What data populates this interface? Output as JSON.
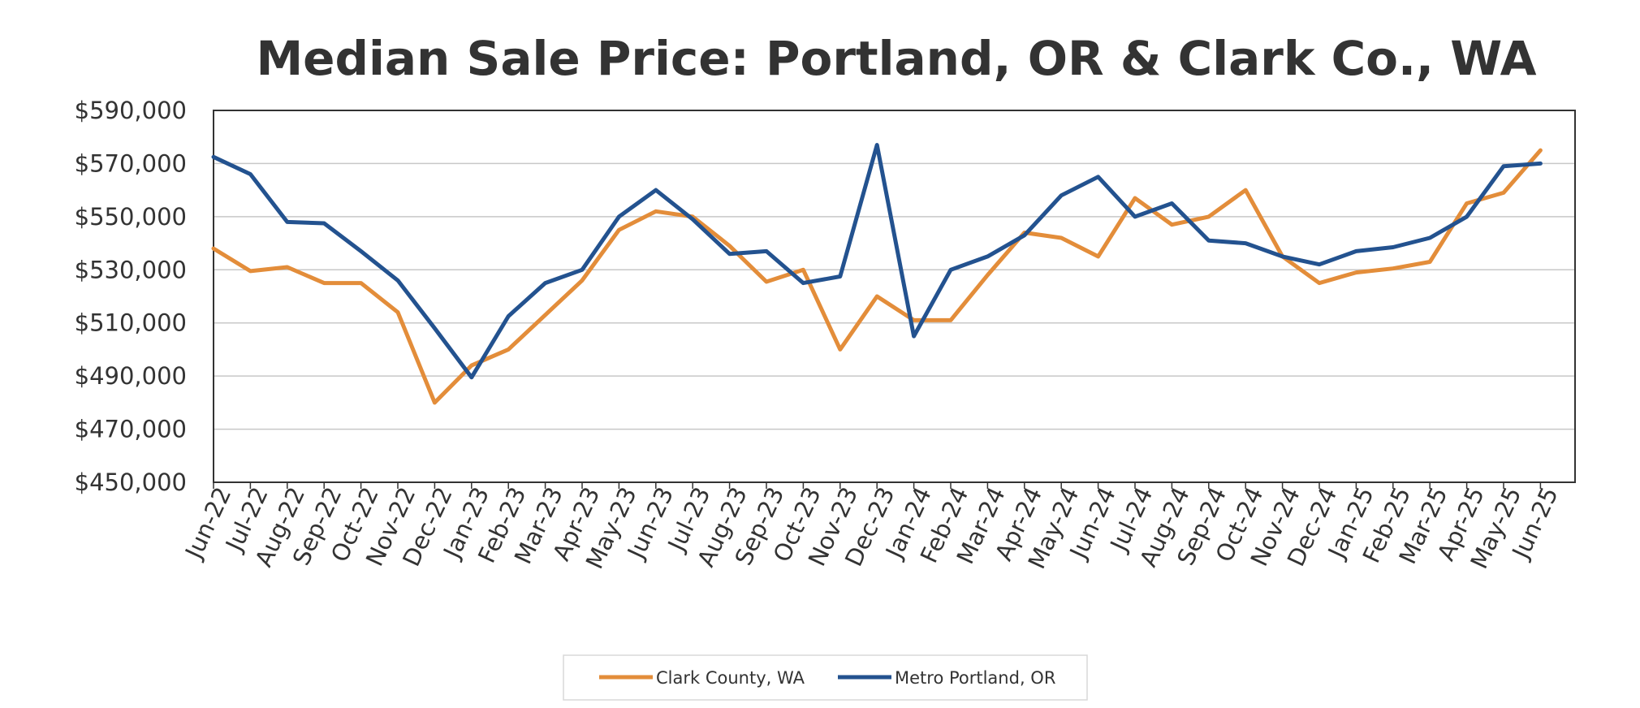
{
  "chart_data": {
    "type": "line",
    "title": "Median Sale Price: Portland, OR & Clark Co., WA",
    "xlabel": "",
    "ylabel": "",
    "ylim": [
      450000,
      590000
    ],
    "y_ticks": [
      590000,
      570000,
      550000,
      530000,
      510000,
      490000,
      470000,
      450000
    ],
    "y_tick_labels": [
      "$590,000",
      "$570,000",
      "$550,000",
      "$530,000",
      "$510,000",
      "$490,000",
      "$470,000",
      "$450,000"
    ],
    "grid": "horizontal",
    "legend_position": "bottom",
    "categories": [
      "Jun-22",
      "Jul-22",
      "Aug-22",
      "Sep-22",
      "Oct-22",
      "Nov-22",
      "Dec-22",
      "Jan-23",
      "Feb-23",
      "Mar-23",
      "Apr-23",
      "May-23",
      "Jun-23",
      "Jul-23",
      "Aug-23",
      "Sep-23",
      "Oct-23",
      "Nov-23",
      "Dec-23",
      "Jan-24",
      "Feb-24",
      "Mar-24",
      "Apr-24",
      "May-24",
      "Jun-24",
      "Jul-24",
      "Aug-24",
      "Sep-24",
      "Oct-24",
      "Nov-24",
      "Dec-24",
      "Jan-25",
      "Feb-25",
      "Mar-25",
      "Apr-25",
      "May-25",
      "Jun-25"
    ],
    "series": [
      {
        "name": "Clark County, WA",
        "color": "#E38D3A",
        "values": [
          538000,
          529500,
          531000,
          525000,
          525000,
          514000,
          480000,
          494000,
          500000,
          513000,
          526000,
          545000,
          552000,
          550000,
          539000,
          525500,
          530000,
          500000,
          520000,
          511000,
          511000,
          528000,
          544000,
          542000,
          535000,
          557000,
          547000,
          550000,
          560000,
          535000,
          525000,
          529000,
          530500,
          533000,
          555000,
          559000,
          575000
        ]
      },
      {
        "name": "Metro Portland, OR",
        "color": "#23528F",
        "values": [
          572500,
          566000,
          548000,
          547500,
          537000,
          526000,
          508000,
          489500,
          512500,
          525000,
          530000,
          550000,
          560000,
          549000,
          536000,
          537000,
          525000,
          527500,
          577000,
          505000,
          530000,
          535000,
          543000,
          558000,
          565000,
          550000,
          555000,
          541000,
          540000,
          535000,
          532000,
          537000,
          538500,
          542000,
          550000,
          569000,
          570000
        ]
      }
    ]
  }
}
